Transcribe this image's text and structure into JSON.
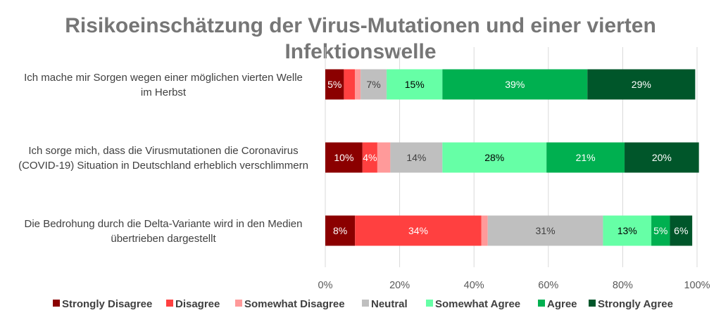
{
  "chart_data": {
    "type": "bar",
    "orientation": "horizontal",
    "stacked": true,
    "title": "Risikoeinschätzung der Virus-Mutationen und einer vierten Infektionswelle",
    "title_lines": [
      "Risikoeinschätzung der Virus-Mutationen und einer vierten",
      "Infektionswelle"
    ],
    "categories": [
      "Ich mache mir Sorgen wegen einer möglichen vierten Welle im Herbst",
      "Ich sorge mich, dass die Virusmutationen die Coronavirus (COVID-19) Situation in Deutschland erheblich verschlimmern",
      "Die Bedrohung durch die Delta-Variante wird in den Medien übertrieben dargestellt"
    ],
    "category_lines": [
      [
        "Ich mache mir Sorgen wegen einer möglichen vierten Welle",
        "im Herbst"
      ],
      [
        "Ich sorge mich, dass die Virusmutationen die Coronavirus",
        "(COVID-19) Situation in Deutschland erheblich verschlimmern"
      ],
      [
        "Die Bedrohung durch die Delta-Variante wird in den Medien",
        "übertrieben dargestellt"
      ]
    ],
    "series": [
      {
        "name": "Strongly Disagree",
        "color": "#8B0000",
        "label_color": "#ffffff",
        "values": [
          5,
          10,
          8
        ],
        "labels": [
          "5%",
          "10%",
          "8%"
        ]
      },
      {
        "name": "Disagree",
        "color": "#FF4040",
        "label_color": "#ffffff",
        "values": [
          3,
          4,
          34
        ],
        "labels": [
          "",
          "4%",
          "34%"
        ]
      },
      {
        "name": "Somewhat Disagree",
        "color": "#FF9A9A",
        "label_color": "#404040",
        "values": [
          1.5,
          3.5,
          1.7
        ],
        "labels": [
          "",
          "",
          ""
        ]
      },
      {
        "name": "Neutral",
        "color": "#BFBFBF",
        "label_color": "#404040",
        "values": [
          7,
          14,
          31
        ],
        "labels": [
          "7%",
          "14%",
          "31%"
        ]
      },
      {
        "name": "Somewhat Agree",
        "color": "#66FFA6",
        "label_color": "#000000",
        "values": [
          15,
          28,
          13
        ],
        "labels": [
          "15%",
          "28%",
          "13%"
        ]
      },
      {
        "name": "Agree",
        "color": "#00B050",
        "label_color": "#ffffff",
        "values": [
          39,
          21,
          5
        ],
        "labels": [
          "39%",
          "21%",
          "5%"
        ]
      },
      {
        "name": "Strongly Agree",
        "color": "#00562A",
        "label_color": "#ffffff",
        "values": [
          29,
          20,
          6
        ],
        "labels": [
          "29%",
          "20%",
          "6%"
        ]
      }
    ],
    "xlim": [
      0,
      100
    ],
    "x_ticks": [
      "0%",
      "20%",
      "40%",
      "60%",
      "80%",
      "100%"
    ],
    "grid": true,
    "legend_position": "bottom"
  }
}
